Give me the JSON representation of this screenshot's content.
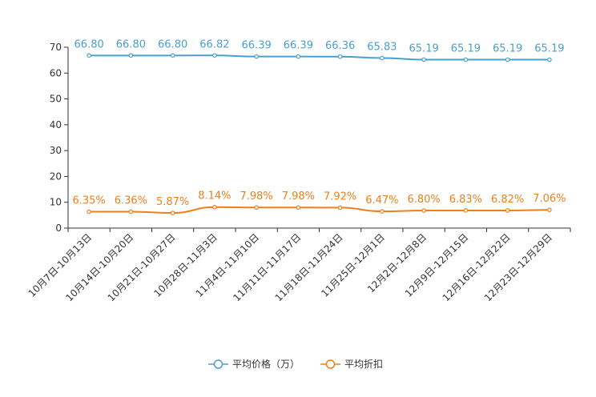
{
  "chart_data": {
    "type": "line",
    "title": "",
    "xlabel": "",
    "ylabel": "",
    "ylim": [
      0,
      70
    ],
    "yticks": [
      0,
      10,
      20,
      30,
      40,
      50,
      60,
      70
    ],
    "grid": false,
    "legend_position": "bottom-center",
    "categories": [
      "10月7日-10月13日",
      "10月14日-10月20日",
      "10月21日-10月27日",
      "10月28日-11月3日",
      "11月4日-11月10日",
      "11月11日-11月17日",
      "11月18日-11月24日",
      "11月25日-12月1日",
      "12月2日-12月8日",
      "12月9日-12月15日",
      "12月16日-12月22日",
      "12月23日-12月29日"
    ],
    "series": [
      {
        "name": "平均价格（万）",
        "color": "#4a9fd0",
        "values": [
          66.8,
          66.8,
          66.8,
          66.82,
          66.39,
          66.39,
          66.36,
          65.83,
          65.19,
          65.19,
          65.19,
          65.19
        ],
        "labels": [
          "66.80",
          "66.80",
          "66.80",
          "66.82",
          "66.39",
          "66.39",
          "66.36",
          "65.83",
          "65.19",
          "65.19",
          "65.19",
          "65.19"
        ]
      },
      {
        "name": "平均折扣",
        "color": "#f07f1b",
        "values": [
          6.35,
          6.36,
          5.87,
          8.14,
          7.98,
          7.98,
          7.92,
          6.47,
          6.8,
          6.83,
          6.82,
          7.06
        ],
        "labels": [
          "6.35%",
          "6.36%",
          "5.87%",
          "8.14%",
          "7.98%",
          "7.98%",
          "7.92%",
          "6.47%",
          "6.80%",
          "6.83%",
          "6.82%",
          "7.06%"
        ]
      }
    ]
  }
}
